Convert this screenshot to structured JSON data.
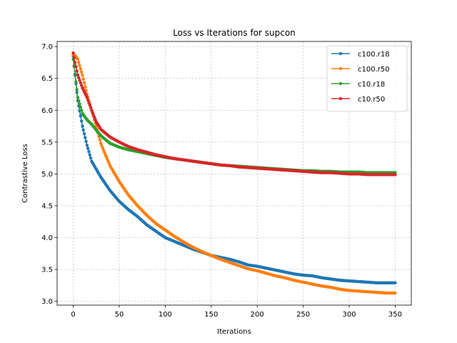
{
  "chart_data": {
    "type": "line",
    "title": "Loss vs Iterations for supcon",
    "xlabel": "Iterations",
    "ylabel": "Contrastive Loss",
    "xlim": [
      -17.5,
      367.5
    ],
    "ylim": [
      2.94,
      7.08
    ],
    "xticks": [
      0,
      50,
      100,
      150,
      200,
      250,
      300,
      350
    ],
    "yticks": [
      3.0,
      3.5,
      4.0,
      4.5,
      5.0,
      5.5,
      6.0,
      6.5,
      7.0
    ],
    "grid": true,
    "legend_position": "top-right",
    "series": [
      {
        "name": "c100.r18",
        "color": "#1f77b4",
        "x": [
          0,
          2,
          5,
          10,
          15,
          20,
          30,
          40,
          50,
          60,
          70,
          80,
          90,
          100,
          110,
          120,
          130,
          140,
          150,
          160,
          170,
          180,
          190,
          200,
          210,
          220,
          230,
          240,
          250,
          260,
          270,
          280,
          290,
          300,
          310,
          320,
          330,
          340,
          350
        ],
        "y": [
          6.85,
          6.55,
          6.15,
          5.75,
          5.45,
          5.2,
          4.95,
          4.74,
          4.57,
          4.44,
          4.33,
          4.2,
          4.1,
          4.0,
          3.94,
          3.88,
          3.82,
          3.77,
          3.72,
          3.69,
          3.66,
          3.62,
          3.57,
          3.55,
          3.52,
          3.49,
          3.46,
          3.43,
          3.41,
          3.4,
          3.37,
          3.35,
          3.33,
          3.32,
          3.31,
          3.3,
          3.29,
          3.29,
          3.29
        ]
      },
      {
        "name": "c100.r50",
        "color": "#ff7f0e",
        "x": [
          0,
          2,
          5,
          10,
          15,
          20,
          25,
          30,
          35,
          40,
          50,
          60,
          70,
          80,
          90,
          100,
          110,
          120,
          130,
          140,
          150,
          160,
          170,
          180,
          190,
          200,
          210,
          220,
          230,
          240,
          250,
          260,
          270,
          280,
          290,
          300,
          310,
          320,
          330,
          340,
          350
        ],
        "y": [
          6.87,
          6.86,
          6.8,
          6.55,
          6.25,
          6.0,
          5.75,
          5.48,
          5.3,
          5.13,
          4.88,
          4.67,
          4.5,
          4.35,
          4.22,
          4.12,
          4.02,
          3.93,
          3.85,
          3.78,
          3.72,
          3.66,
          3.61,
          3.56,
          3.51,
          3.48,
          3.44,
          3.4,
          3.37,
          3.33,
          3.3,
          3.27,
          3.24,
          3.22,
          3.19,
          3.17,
          3.16,
          3.15,
          3.14,
          3.13,
          3.13
        ]
      },
      {
        "name": "c10.r18",
        "color": "#2ca02c",
        "x": [
          0,
          2,
          5,
          10,
          15,
          20,
          30,
          40,
          50,
          60,
          70,
          80,
          90,
          100,
          110,
          120,
          130,
          140,
          150,
          160,
          170,
          180,
          190,
          200,
          210,
          220,
          230,
          240,
          250,
          260,
          270,
          280,
          290,
          300,
          310,
          320,
          330,
          340,
          350
        ],
        "y": [
          6.8,
          6.57,
          6.2,
          5.95,
          5.85,
          5.78,
          5.6,
          5.48,
          5.42,
          5.38,
          5.35,
          5.32,
          5.29,
          5.26,
          5.24,
          5.22,
          5.2,
          5.18,
          5.16,
          5.14,
          5.13,
          5.12,
          5.11,
          5.1,
          5.09,
          5.08,
          5.07,
          5.06,
          5.05,
          5.05,
          5.04,
          5.04,
          5.03,
          5.03,
          5.03,
          5.02,
          5.02,
          5.02,
          5.02
        ]
      },
      {
        "name": "c10.r50",
        "color": "#d62728",
        "x": [
          0,
          2,
          5,
          10,
          15,
          20,
          25,
          30,
          40,
          50,
          60,
          70,
          80,
          90,
          100,
          110,
          120,
          130,
          140,
          150,
          160,
          170,
          180,
          190,
          200,
          210,
          220,
          230,
          240,
          250,
          260,
          270,
          280,
          290,
          300,
          310,
          320,
          330,
          340,
          350
        ],
        "y": [
          6.9,
          6.75,
          6.55,
          6.35,
          6.2,
          6.0,
          5.82,
          5.7,
          5.58,
          5.5,
          5.43,
          5.38,
          5.34,
          5.3,
          5.27,
          5.24,
          5.22,
          5.2,
          5.18,
          5.16,
          5.14,
          5.13,
          5.11,
          5.1,
          5.09,
          5.08,
          5.07,
          5.06,
          5.05,
          5.04,
          5.03,
          5.02,
          5.02,
          5.01,
          5.0,
          5.0,
          4.99,
          4.99,
          4.99,
          4.99
        ]
      }
    ]
  }
}
